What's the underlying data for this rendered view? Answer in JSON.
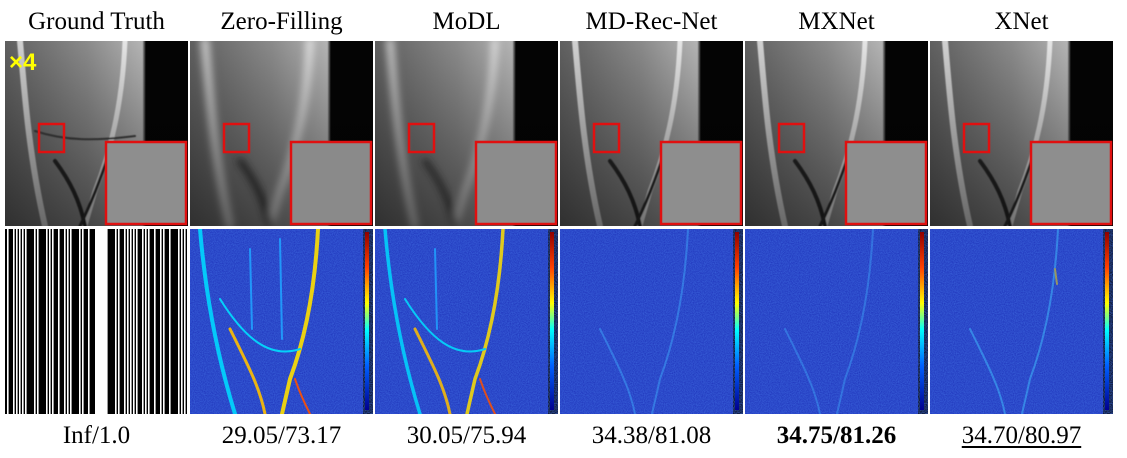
{
  "columns": [
    {
      "title": "Ground Truth",
      "metric": "Inf/1.0"
    },
    {
      "title": "Zero-Filling",
      "metric": "29.05/73.17"
    },
    {
      "title": "MoDL",
      "metric": "30.05/75.94"
    },
    {
      "title": "MD-Rec-Net",
      "metric": "34.38/81.08"
    },
    {
      "title": "MXNet",
      "metric": "34.75/81.26"
    },
    {
      "title": "XNet",
      "metric": "34.70/80.97"
    }
  ],
  "acceleration_label": "×4",
  "colors": {
    "zoom_box": "#e01010",
    "accel_label": "#ffff00",
    "error_bg": "#1c2fb8"
  },
  "best_column_index": 4,
  "second_best_column_index": 5
}
